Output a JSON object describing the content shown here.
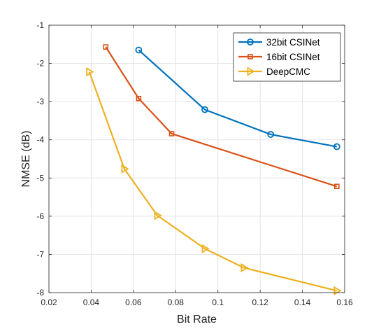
{
  "chart_data": {
    "type": "line",
    "title": "",
    "xlabel": "Bit Rate",
    "ylabel": "NMSE (dB)",
    "xlim": [
      0.02,
      0.16
    ],
    "ylim": [
      -8,
      -1
    ],
    "xticks": [
      0.02,
      0.04,
      0.06,
      0.08,
      0.1,
      0.12,
      0.14,
      0.16
    ],
    "xtick_labels": [
      "0.02",
      "0.04",
      "0.06",
      "0.08",
      "0.1",
      "0.12",
      "0.14",
      "0.16"
    ],
    "yticks": [
      -8,
      -7,
      -6,
      -5,
      -4,
      -3,
      -2,
      -1
    ],
    "ytick_labels": [
      "-8",
      "-7",
      "-6",
      "-5",
      "-4",
      "-3",
      "-2",
      "-1"
    ],
    "grid": true,
    "legend_position": "top-right",
    "series": [
      {
        "name": "32bit CSINet",
        "color": "#0072BD",
        "marker": "circle",
        "x": [
          0.0625,
          0.0938,
          0.125,
          0.1563
        ],
        "y": [
          -1.65,
          -3.21,
          -3.86,
          -4.18
        ]
      },
      {
        "name": "16bit CSINet",
        "color": "#D95319",
        "marker": "square",
        "x": [
          0.0469,
          0.0625,
          0.0781,
          0.1563
        ],
        "y": [
          -1.57,
          -2.92,
          -3.84,
          -5.22
        ]
      },
      {
        "name": "DeepCMC",
        "color": "#EDB120",
        "marker": "triangle-right",
        "x": [
          0.0391,
          0.0557,
          0.0713,
          0.0938,
          0.1123,
          0.1563
        ],
        "y": [
          -2.22,
          -4.76,
          -5.98,
          -6.85,
          -7.35,
          -7.95
        ]
      }
    ]
  }
}
